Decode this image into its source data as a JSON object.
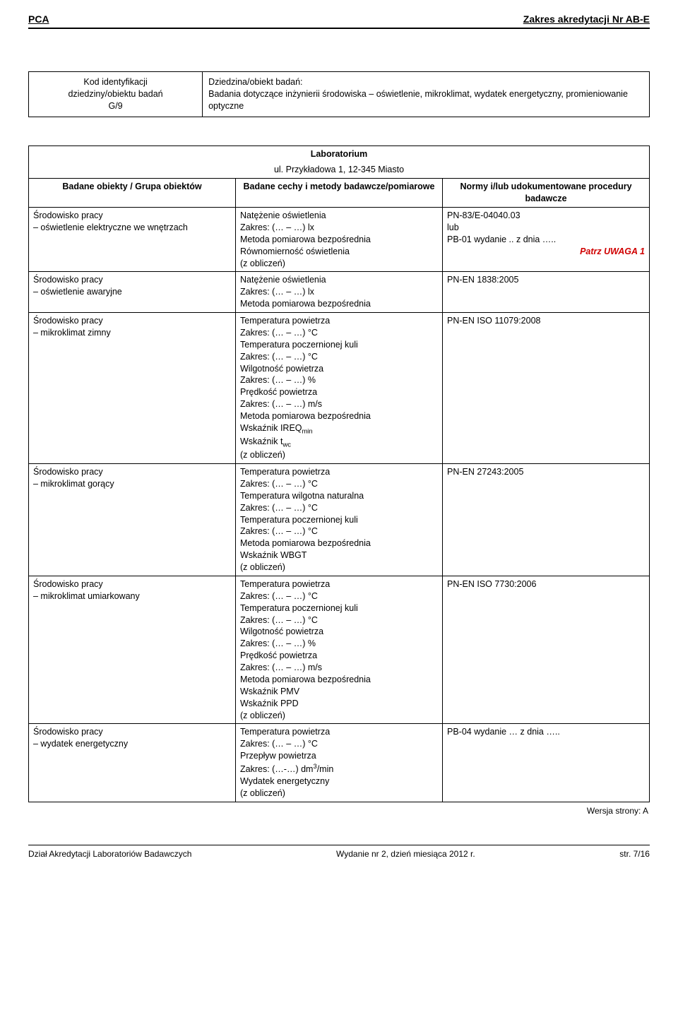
{
  "header": {
    "left": "PCA",
    "right": "Zakres akredytacji Nr AB-E"
  },
  "box": {
    "col1_line1": "Kod identyfikacji",
    "col1_line2": "dziedziny/obiektu badań",
    "col1_code": "G/9",
    "col2_line1": "Dziedzina/obiekt badań:",
    "col2_line2": "Badania dotyczące inżynierii środowiska – oświetlenie, mikroklimat, wydatek energetyczny, promieniowanie optyczne"
  },
  "lab": {
    "title": "Laboratorium",
    "address": "ul. Przykładowa 1, 12-345 Miasto"
  },
  "columns": {
    "c1": "Badane obiekty / Grupa obiektów",
    "c2": "Badane cechy i metody badawcze/pomiarowe",
    "c3": "Normy i/lub udokumentowane procedury badawcze"
  },
  "rows": [
    {
      "obj": "Środowisko pracy\n– oświetlenie elektryczne we wnętrzach",
      "meth": "Natężenie oświetlenia\nZakres: (… – …) lx\nMetoda pomiarowa bezpośrednia\nRównomierność oświetlenia\n(z obliczeń)",
      "norm": "PN-83/E-04040.03\nlub\nPB-01 wydanie .. z dnia …..",
      "note": "Patrz UWAGA 1"
    },
    {
      "obj": "Środowisko pracy\n– oświetlenie awaryjne",
      "meth": "Natężenie oświetlenia\nZakres: (… – …) lx\nMetoda pomiarowa bezpośrednia",
      "norm": "PN-EN 1838:2005"
    },
    {
      "obj": "Środowisko pracy\n– mikroklimat zimny",
      "meth": "Temperatura powietrza\nZakres: (… – …) °C\nTemperatura poczernionej kuli\nZakres: (… – …) °C\nWilgotność powietrza\nZakres: (… – …) %\nPrędkość powietrza\nZakres: (… – …) m/s\nMetoda pomiarowa bezpośrednia\nWskaźnik IREQ{sub}min{/sub}\nWskaźnik t{sub}wc{/sub}\n(z obliczeń)",
      "norm": "PN-EN ISO 11079:2008"
    },
    {
      "obj": "Środowisko pracy\n– mikroklimat gorący",
      "meth": "Temperatura powietrza\nZakres: (… – …) °C\nTemperatura wilgotna naturalna\nZakres: (… – …) °C\nTemperatura poczernionej kuli\nZakres: (… – …) °C\nMetoda pomiarowa bezpośrednia\nWskaźnik WBGT\n(z obliczeń)",
      "norm": "PN-EN 27243:2005"
    },
    {
      "obj": "Środowisko pracy\n– mikroklimat umiarkowany",
      "meth": "Temperatura powietrza\nZakres: (… – …) °C\nTemperatura poczernionej kuli\nZakres: (… – …) °C\nWilgotność  powietrza\nZakres: (… – …) %\nPrędkość powietrza\nZakres: (… – …) m/s\nMetoda pomiarowa bezpośrednia\nWskaźnik PMV\nWskaźnik PPD\n(z obliczeń)",
      "norm": "PN-EN ISO 7730:2006"
    },
    {
      "obj": "Środowisko pracy\n– wydatek energetyczny",
      "meth": "Temperatura powietrza\nZakres: (… – …) °C\nPrzepływ powietrza\nZakres: (…-…) dm{sup}3{/sup}/min\nWydatek energetyczny\n(z obliczeń)",
      "norm": "PB-04 wydanie … z dnia ….."
    }
  ],
  "version": "Wersja strony: A",
  "footer": {
    "left": "Dział Akredytacji Laboratoriów Badawczych",
    "center": "Wydanie nr 2, dzień miesiąca 2012 r.",
    "right": "str. 7/16"
  }
}
